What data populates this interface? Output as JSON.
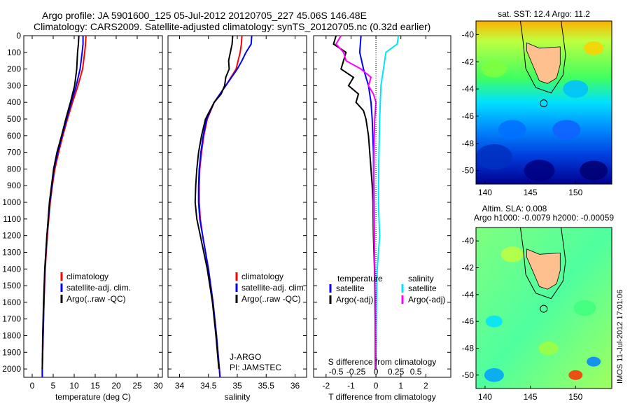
{
  "title": {
    "line1": "Argo profile: JA 5901600_125 05-Jul-2012 20120705_227 45.06S 146.48E",
    "line2": "Climatology: CARS2009. Satellite-adjusted climatology: synTS_20120705.nc (0.32d earlier)"
  },
  "side_label": "IMOS 11-Jul-2012 17:01:06",
  "colors": {
    "climatology": "#ff0000",
    "satellite": "#0000ff",
    "argo": "#000000",
    "sat_s": "#00e5ff",
    "argo_s": "#ff00ff"
  },
  "chart_data": [
    {
      "type": "line",
      "name": "temperature-profile",
      "xlabel": "temperature (deg C)",
      "xlim": [
        -2,
        31
      ],
      "ylim": [
        0,
        2050
      ],
      "xticks": [
        0,
        5,
        10,
        15,
        20,
        25,
        30
      ],
      "yticks": [
        0,
        100,
        200,
        300,
        400,
        500,
        600,
        700,
        800,
        900,
        1000,
        1100,
        1200,
        1300,
        1400,
        1500,
        1600,
        1700,
        1800,
        1900,
        2000
      ],
      "legend": [
        "climatology",
        "satellite-adj. clim.",
        "Argo(..raw -QC)"
      ],
      "series": [
        {
          "name": "climatology",
          "color": "#ff0000",
          "depth": [
            0,
            50,
            100,
            200,
            300,
            400,
            500,
            600,
            700,
            800,
            900,
            1000,
            1200,
            1400,
            1600,
            1800,
            2000,
            2050
          ],
          "values": [
            12.8,
            12.7,
            12.5,
            12.0,
            10.9,
            9.6,
            8.4,
            7.3,
            6.3,
            5.4,
            4.8,
            4.3,
            3.6,
            3.1,
            2.8,
            2.6,
            2.4,
            2.4
          ]
        },
        {
          "name": "satellite-adj. clim.",
          "color": "#0000ff",
          "depth": [
            0,
            50,
            100,
            200,
            300,
            400,
            500,
            600,
            700,
            800,
            900,
            1000,
            1200,
            1400,
            1600,
            1800,
            2000,
            2050
          ],
          "values": [
            12.1,
            12.1,
            11.9,
            11.4,
            10.5,
            9.3,
            8.2,
            7.1,
            6.1,
            5.2,
            4.7,
            4.2,
            3.5,
            3.0,
            2.8,
            2.6,
            2.4,
            2.4
          ]
        },
        {
          "name": "Argo(..raw -QC)",
          "color": "#000000",
          "depth": [
            0,
            50,
            100,
            200,
            300,
            400,
            500,
            600,
            700,
            800,
            900,
            1000,
            1200,
            1400,
            1600,
            1800,
            2000
          ],
          "values": [
            11.1,
            11.0,
            10.8,
            10.6,
            10.1,
            9.1,
            8.0,
            7.0,
            5.9,
            5.1,
            4.6,
            4.1,
            3.5,
            3.0,
            2.7,
            2.5,
            2.4
          ]
        }
      ]
    },
    {
      "type": "line",
      "name": "salinity-profile",
      "xlabel": "salinity",
      "xlim": [
        33.8,
        36.2
      ],
      "ylim": [
        0,
        2050
      ],
      "xticks": [
        34,
        34.5,
        35,
        35.5,
        36
      ],
      "legend": [
        "climatology",
        "satellite-adj. clim.",
        "Argo(..raw -QC)"
      ],
      "annotation": [
        "J-ARGO",
        "PI: JAMSTEC"
      ],
      "series": [
        {
          "name": "climatology",
          "color": "#ff0000",
          "depth": [
            0,
            50,
            100,
            200,
            300,
            400,
            500,
            600,
            700,
            800,
            900,
            1000,
            1100,
            1200,
            1400,
            1600,
            1800,
            2000,
            2050
          ],
          "values": [
            35.08,
            35.07,
            35.05,
            34.98,
            34.8,
            34.6,
            34.48,
            34.42,
            34.38,
            34.35,
            34.34,
            34.34,
            34.36,
            34.4,
            34.5,
            34.58,
            34.64,
            34.69,
            34.7
          ]
        },
        {
          "name": "satellite-adj. clim.",
          "color": "#0000ff",
          "depth": [
            0,
            50,
            100,
            150,
            200,
            300,
            400,
            500,
            600,
            700,
            800,
            900,
            1000,
            1100,
            1200,
            1400,
            1600,
            1800,
            2000,
            2050
          ],
          "values": [
            35.25,
            35.24,
            35.15,
            35.08,
            35.0,
            34.8,
            34.6,
            34.47,
            34.41,
            34.37,
            34.34,
            34.33,
            34.33,
            34.35,
            34.4,
            34.5,
            34.58,
            34.64,
            34.69,
            34.7
          ]
        },
        {
          "name": "Argo(..raw -QC)",
          "color": "#000000",
          "depth": [
            0,
            50,
            100,
            150,
            200,
            250,
            300,
            350,
            400,
            500,
            600,
            700,
            800,
            900,
            1000,
            1100,
            1200,
            1400,
            1600,
            1800,
            2000
          ],
          "values": [
            34.92,
            34.91,
            34.88,
            34.85,
            34.86,
            34.8,
            34.78,
            34.72,
            34.6,
            34.45,
            34.38,
            34.33,
            34.3,
            34.28,
            34.27,
            34.3,
            34.36,
            34.48,
            34.57,
            34.63,
            34.68
          ]
        }
      ]
    },
    {
      "type": "line",
      "name": "difference-profile",
      "xlabel": "T difference from climatology",
      "xlabel_top": "S difference from climatology",
      "xlim": [
        -2.5,
        3
      ],
      "ylim": [
        0,
        2050
      ],
      "xticks": [
        -2,
        -1,
        0,
        1,
        2
      ],
      "top_ticks": [
        "-0.5",
        "-0.25",
        "0",
        "0.25",
        "0.5"
      ],
      "legend_titles": [
        "temperature",
        "salinity"
      ],
      "legend": [
        "satellite",
        "Argo(-adj)",
        "satellite",
        "Argo(-adj)"
      ],
      "series": [
        {
          "name": "T satellite",
          "color": "#0000ff",
          "depth": [
            0,
            100,
            200,
            300,
            400,
            500,
            700,
            1000,
            1300,
            1600,
            2000
          ],
          "values": [
            -0.6,
            -0.65,
            -0.5,
            -0.3,
            -0.2,
            -0.15,
            -0.1,
            -0.08,
            -0.06,
            -0.04,
            -0.02
          ]
        },
        {
          "name": "T Argo(-adj)",
          "color": "#000000",
          "depth": [
            0,
            50,
            100,
            150,
            200,
            250,
            300,
            350,
            400,
            450,
            500,
            600,
            700,
            800,
            900,
            1000,
            1200,
            1400,
            1600,
            1800,
            2000
          ],
          "values": [
            -1.6,
            -1.7,
            -1.2,
            -1.3,
            -1.4,
            -0.9,
            -1.1,
            -0.7,
            -0.8,
            -0.5,
            -0.4,
            -0.3,
            -0.25,
            -0.2,
            -0.15,
            -0.12,
            -0.1,
            -0.06,
            -0.04,
            -0.02,
            -0.01
          ]
        },
        {
          "name": "S satellite",
          "color": "#00e5ff",
          "depth": [
            0,
            50,
            100,
            200,
            300,
            500,
            700,
            900,
            1000,
            1100,
            1200,
            1300,
            1400,
            1600,
            1800,
            2000
          ],
          "values": [
            0.9,
            0.85,
            0.4,
            0.3,
            0.2,
            0.15,
            0.12,
            0.1,
            0.1,
            0.12,
            0.15,
            0.1,
            0.05,
            0.02,
            0.01,
            0.0
          ]
        },
        {
          "name": "S Argo(-adj)",
          "color": "#ff00ff",
          "depth": [
            0,
            50,
            100,
            150,
            200,
            250,
            300,
            350,
            400,
            500,
            700,
            900,
            1000,
            1200,
            1400,
            1600,
            1800,
            2000
          ],
          "values": [
            -1.4,
            -1.6,
            -1.3,
            -1.2,
            -0.6,
            -0.2,
            -0.3,
            -0.1,
            0.0,
            -0.05,
            -0.08,
            -0.1,
            -0.1,
            -0.08,
            -0.05,
            -0.03,
            -0.02,
            0.0
          ]
        }
      ]
    },
    {
      "type": "heatmap",
      "name": "sst-map",
      "title": "sat. SST: 12.4 Argo: 11.2",
      "xlim": [
        139,
        154
      ],
      "ylim": [
        -51,
        -39
      ],
      "xticks": [
        140,
        145,
        150
      ],
      "yticks": [
        -40,
        -42,
        -44,
        -46,
        -48,
        -50
      ],
      "marker": {
        "lon": 146.48,
        "lat": -45.06
      }
    },
    {
      "type": "heatmap",
      "name": "sla-map",
      "title": "Altim. SLA: 0.008",
      "subtitle": "Argo h1000: -0.0079 h2000: -0.00059",
      "xlim": [
        139,
        154
      ],
      "ylim": [
        -51,
        -39
      ],
      "xticks": [
        140,
        145,
        150
      ],
      "yticks": [
        -40,
        -42,
        -44,
        -46,
        -48,
        -50
      ],
      "marker": {
        "lon": 146.48,
        "lat": -45.06
      }
    }
  ]
}
